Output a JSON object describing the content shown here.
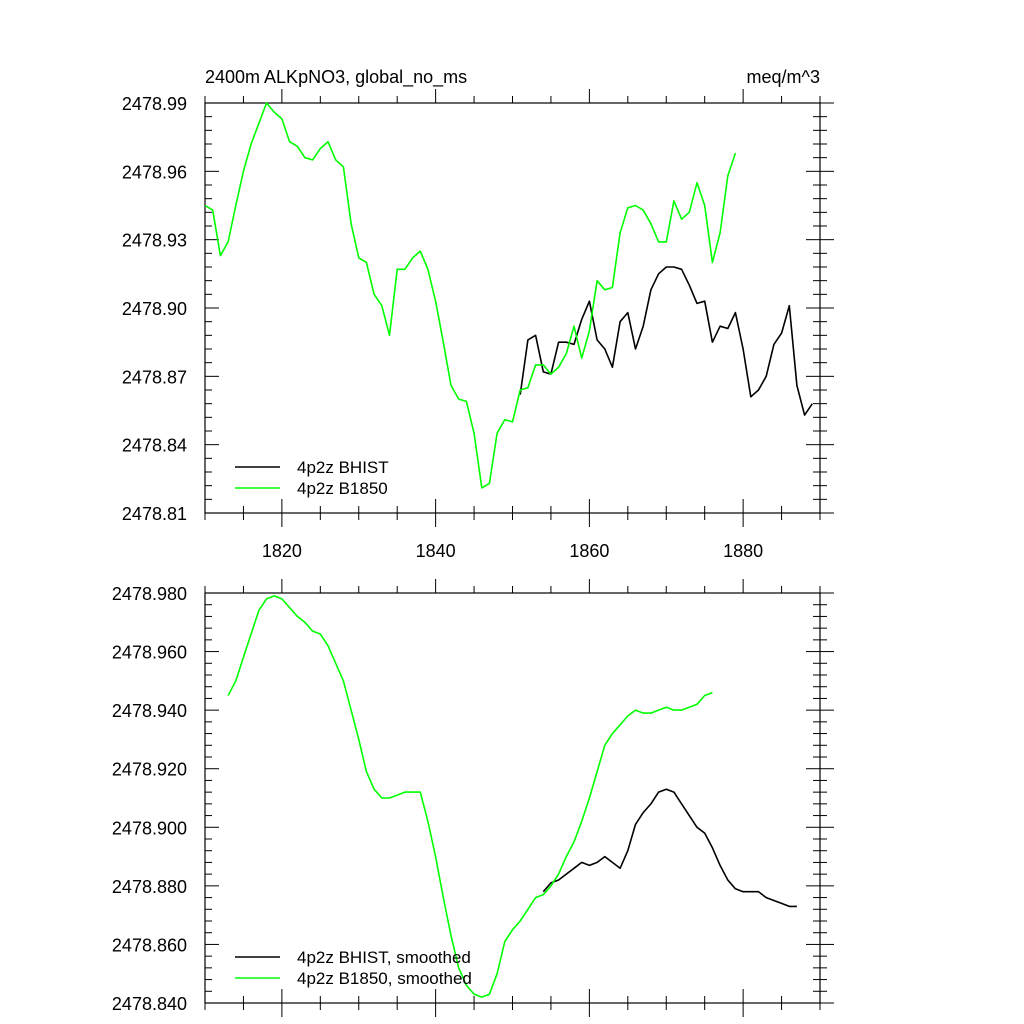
{
  "chart_data": [
    {
      "type": "line",
      "title_left": "2400m ALKpNO3, global_no_ms",
      "title_right": "meq/m^3",
      "xlim": [
        1810,
        1890
      ],
      "ylim": [
        2478.81,
        2478.99
      ],
      "xticks": [
        1820,
        1840,
        1860,
        1880
      ],
      "xtick_labels": [
        "1820",
        "1840",
        "1860",
        "1880"
      ],
      "yticks": [
        2478.81,
        2478.84,
        2478.87,
        2478.9,
        2478.93,
        2478.96,
        2478.99
      ],
      "ytick_labels": [
        "2478.81",
        "2478.84",
        "2478.87",
        "2478.90",
        "2478.93",
        "2478.96",
        "2478.99"
      ],
      "legend_placement": "bottom-left",
      "series": [
        {
          "name": "4p2z BHIST",
          "color": "#000000",
          "x": [
            1851,
            1852,
            1853,
            1854,
            1855,
            1856,
            1857,
            1858,
            1859,
            1860,
            1861,
            1862,
            1863,
            1864,
            1865,
            1866,
            1867,
            1868,
            1869,
            1870,
            1871,
            1872,
            1873,
            1874,
            1875,
            1876,
            1877,
            1878,
            1879,
            1880,
            1881,
            1882,
            1883,
            1884,
            1885,
            1886,
            1887,
            1888,
            1889
          ],
          "y": [
            2478.862,
            2478.886,
            2478.888,
            2478.872,
            2478.871,
            2478.885,
            2478.885,
            2478.884,
            2478.895,
            2478.903,
            2478.886,
            2478.882,
            2478.874,
            2478.894,
            2478.898,
            2478.882,
            2478.892,
            2478.908,
            2478.915,
            2478.918,
            2478.918,
            2478.917,
            2478.91,
            2478.902,
            2478.903,
            2478.885,
            2478.892,
            2478.891,
            2478.898,
            2478.882,
            2478.861,
            2478.864,
            2478.87,
            2478.884,
            2478.889,
            2478.901,
            2478.866,
            2478.853,
            2478.858
          ]
        },
        {
          "name": "4p2z B1850",
          "color": "#00ff00",
          "x": [
            1810,
            1811,
            1812,
            1813,
            1814,
            1815,
            1816,
            1817,
            1818,
            1819,
            1820,
            1821,
            1822,
            1823,
            1824,
            1825,
            1826,
            1827,
            1828,
            1829,
            1830,
            1831,
            1832,
            1833,
            1834,
            1835,
            1836,
            1837,
            1838,
            1839,
            1840,
            1841,
            1842,
            1843,
            1844,
            1845,
            1846,
            1847,
            1848,
            1849,
            1850,
            1851,
            1852,
            1853,
            1854,
            1855,
            1856,
            1857,
            1858,
            1859,
            1860,
            1861,
            1862,
            1863,
            1864,
            1865,
            1866,
            1867,
            1868,
            1869,
            1870,
            1871,
            1872,
            1873,
            1874,
            1875,
            1876,
            1877,
            1878,
            1879
          ],
          "y": [
            2478.945,
            2478.943,
            2478.923,
            2478.929,
            2478.945,
            2478.96,
            2478.972,
            2478.981,
            2478.99,
            2478.986,
            2478.983,
            2478.973,
            2478.971,
            2478.966,
            2478.965,
            2478.97,
            2478.973,
            2478.965,
            2478.962,
            2478.937,
            2478.922,
            2478.92,
            2478.906,
            2478.901,
            2478.888,
            2478.917,
            2478.917,
            2478.922,
            2478.925,
            2478.917,
            2478.903,
            2478.885,
            2478.866,
            2478.86,
            2478.859,
            2478.845,
            2478.821,
            2478.823,
            2478.845,
            2478.851,
            2478.85,
            2478.864,
            2478.865,
            2478.875,
            2478.875,
            2478.871,
            2478.874,
            2478.88,
            2478.892,
            2478.878,
            2478.89,
            2478.912,
            2478.908,
            2478.909,
            2478.933,
            2478.944,
            2478.945,
            2478.943,
            2478.937,
            2478.929,
            2478.929,
            2478.947,
            2478.939,
            2478.942,
            2478.955,
            2478.945,
            2478.92,
            2478.933,
            2478.958,
            2478.968
          ]
        }
      ]
    },
    {
      "type": "line",
      "xlim": [
        1810,
        1890
      ],
      "ylim": [
        2478.84,
        2478.98
      ],
      "xticks": [
        1820,
        1840,
        1860,
        1880
      ],
      "yticks": [
        2478.84,
        2478.86,
        2478.88,
        2478.9,
        2478.92,
        2478.94,
        2478.96,
        2478.98
      ],
      "ytick_labels": [
        "2478.840",
        "2478.860",
        "2478.880",
        "2478.900",
        "2478.920",
        "2478.940",
        "2478.960",
        "2478.980"
      ],
      "legend_placement": "bottom-left",
      "series": [
        {
          "name": "4p2z BHIST, smoothed",
          "color": "#000000",
          "x": [
            1854,
            1855,
            1856,
            1857,
            1858,
            1859,
            1860,
            1861,
            1862,
            1863,
            1864,
            1865,
            1866,
            1867,
            1868,
            1869,
            1870,
            1871,
            1872,
            1873,
            1874,
            1875,
            1876,
            1877,
            1878,
            1879,
            1880,
            1881,
            1882,
            1883,
            1884,
            1885,
            1886,
            1887
          ],
          "y": [
            2478.878,
            2478.881,
            2478.882,
            2478.884,
            2478.886,
            2478.888,
            2478.887,
            2478.888,
            2478.89,
            2478.888,
            2478.886,
            2478.892,
            2478.901,
            2478.905,
            2478.908,
            2478.912,
            2478.913,
            2478.912,
            2478.908,
            2478.904,
            2478.9,
            2478.898,
            2478.893,
            2478.887,
            2478.882,
            2478.879,
            2478.878,
            2478.878,
            2478.878,
            2478.876,
            2478.875,
            2478.874,
            2478.873,
            2478.873
          ]
        },
        {
          "name": "4p2z B1850, smoothed",
          "color": "#00ff00",
          "x": [
            1813,
            1814,
            1815,
            1816,
            1817,
            1818,
            1819,
            1820,
            1821,
            1822,
            1823,
            1824,
            1825,
            1826,
            1827,
            1828,
            1829,
            1830,
            1831,
            1832,
            1833,
            1834,
            1835,
            1836,
            1837,
            1838,
            1839,
            1840,
            1841,
            1842,
            1843,
            1844,
            1845,
            1846,
            1847,
            1848,
            1849,
            1850,
            1851,
            1852,
            1853,
            1854,
            1855,
            1856,
            1857,
            1858,
            1859,
            1860,
            1861,
            1862,
            1863,
            1864,
            1865,
            1866,
            1867,
            1868,
            1869,
            1870,
            1871,
            1872,
            1873,
            1874,
            1875,
            1876
          ],
          "y": [
            2478.945,
            2478.95,
            2478.958,
            2478.966,
            2478.974,
            2478.978,
            2478.979,
            2478.978,
            2478.975,
            2478.972,
            2478.97,
            2478.967,
            2478.966,
            2478.962,
            2478.956,
            2478.95,
            2478.94,
            2478.93,
            2478.919,
            2478.913,
            2478.91,
            2478.91,
            2478.911,
            2478.912,
            2478.912,
            2478.912,
            2478.902,
            2478.89,
            2478.876,
            2478.863,
            2478.852,
            2478.846,
            2478.843,
            2478.842,
            2478.843,
            2478.85,
            2478.861,
            2478.865,
            2478.868,
            2478.872,
            2478.876,
            2478.877,
            2478.88,
            2478.884,
            2478.89,
            2478.895,
            2478.902,
            2478.91,
            2478.919,
            2478.928,
            2478.932,
            2478.935,
            2478.938,
            2478.94,
            2478.939,
            2478.939,
            2478.94,
            2478.941,
            2478.94,
            2478.94,
            2478.941,
            2478.942,
            2478.945,
            2478.946
          ]
        }
      ]
    }
  ]
}
